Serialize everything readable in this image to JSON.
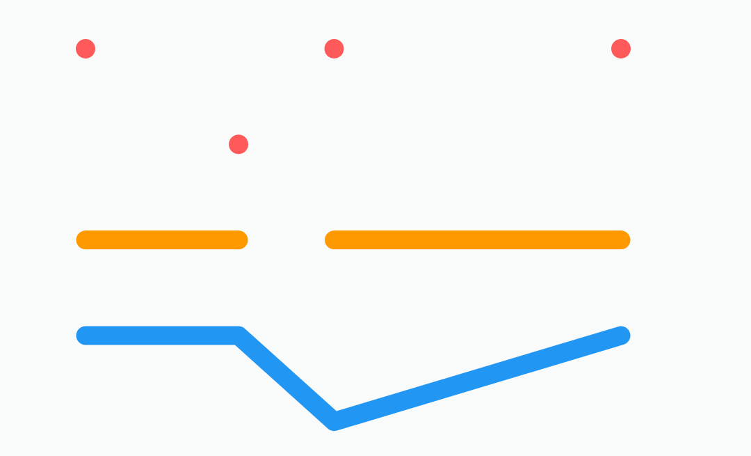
{
  "chart_data": {
    "type": "line",
    "x": [
      0,
      1,
      1.625,
      3.5
    ],
    "ylim": [
      0,
      4
    ],
    "xlim": [
      0,
      3.5
    ],
    "grid": false,
    "legend": "none",
    "series": [
      {
        "style": "scatter",
        "color": "#ff5a5a",
        "points": [
          {
            "x": 0,
            "y": 4
          },
          {
            "x": 1.625,
            "y": 4
          },
          {
            "x": 3.5,
            "y": 4
          },
          {
            "x": 1,
            "y": 3
          }
        ]
      },
      {
        "style": "segments",
        "color": "#ff9900",
        "segments": [
          [
            {
              "x": 0,
              "y": 2
            },
            {
              "x": 1,
              "y": 2
            }
          ],
          [
            {
              "x": 1.625,
              "y": 2
            },
            {
              "x": 3.5,
              "y": 2
            }
          ]
        ]
      },
      {
        "style": "line",
        "color": "#2196f3",
        "points": [
          {
            "x": 0,
            "y": 1
          },
          {
            "x": 1,
            "y": 1
          },
          {
            "x": 1.625,
            "y": 0.1
          },
          {
            "x": 3.5,
            "y": 1
          }
        ]
      }
    ]
  }
}
